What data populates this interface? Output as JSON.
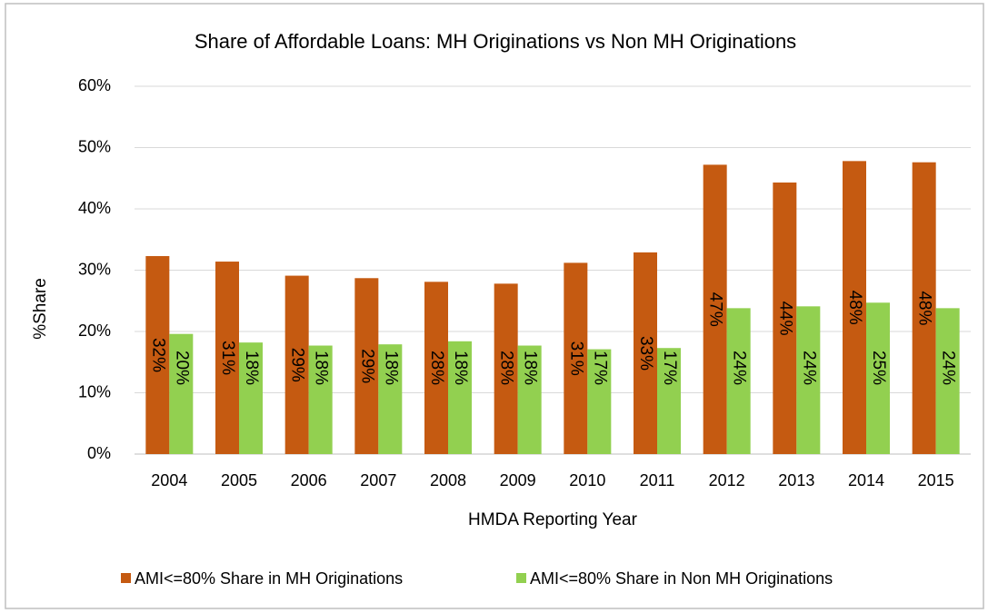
{
  "chart_data": {
    "type": "bar",
    "title": "Share of Affordable Loans: MH Originations vs Non MH Originations",
    "y_label": "%Share",
    "x_label": "HMDA Reporting Year",
    "categories": [
      "2004",
      "2005",
      "2006",
      "2007",
      "2008",
      "2009",
      "2010",
      "2011",
      "2012",
      "2013",
      "2014",
      "2015"
    ],
    "series": [
      {
        "name": "AMI<=80% Share in MH Originations",
        "color": "#c55a11",
        "values": [
          32.3,
          31.4,
          29.1,
          28.7,
          28.1,
          27.8,
          31.2,
          32.9,
          47.2,
          44.3,
          47.8,
          47.6
        ],
        "value_labels": [
          "32%",
          "31%",
          "29%",
          "29%",
          "28%",
          "28%",
          "31%",
          "33%",
          "47%",
          "44%",
          "48%",
          "48%"
        ]
      },
      {
        "name": "AMI<=80% Share in Non MH Originations",
        "color": "#92d050",
        "values": [
          19.6,
          18.2,
          17.7,
          17.9,
          18.4,
          17.7,
          17.1,
          17.3,
          23.8,
          24.1,
          24.7,
          23.8
        ],
        "value_labels": [
          "20%",
          "18%",
          "18%",
          "18%",
          "18%",
          "18%",
          "17%",
          "17%",
          "24%",
          "24%",
          "25%",
          "24%"
        ]
      }
    ],
    "ylim": [
      0,
      60
    ],
    "yticks": [
      {
        "value": 0,
        "label": "0%"
      },
      {
        "value": 10,
        "label": "10%"
      },
      {
        "value": 20,
        "label": "20%"
      },
      {
        "value": 30,
        "label": "30%"
      },
      {
        "value": 40,
        "label": "40%"
      },
      {
        "value": 50,
        "label": "50%"
      },
      {
        "value": 60,
        "label": "60%"
      }
    ],
    "grid": true,
    "legend": "bottom"
  }
}
